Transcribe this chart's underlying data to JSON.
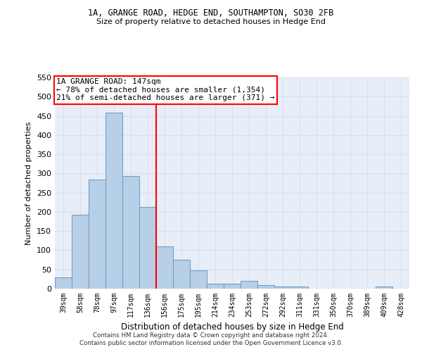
{
  "title_line1": "1A, GRANGE ROAD, HEDGE END, SOUTHAMPTON, SO30 2FB",
  "title_line2": "Size of property relative to detached houses in Hedge End",
  "xlabel": "Distribution of detached houses by size in Hedge End",
  "ylabel": "Number of detached properties",
  "categories": [
    "39sqm",
    "58sqm",
    "78sqm",
    "97sqm",
    "117sqm",
    "136sqm",
    "156sqm",
    "175sqm",
    "195sqm",
    "214sqm",
    "234sqm",
    "253sqm",
    "272sqm",
    "292sqm",
    "311sqm",
    "331sqm",
    "350sqm",
    "370sqm",
    "389sqm",
    "409sqm",
    "428sqm"
  ],
  "values": [
    30,
    192,
    285,
    458,
    293,
    213,
    110,
    75,
    47,
    13,
    12,
    21,
    10,
    6,
    6,
    0,
    0,
    0,
    0,
    5,
    0
  ],
  "bar_color": "#b8cfe8",
  "bar_edge_color": "#6fa0c8",
  "vline_index": 6,
  "vline_color": "red",
  "annotation_text": "1A GRANGE ROAD: 147sqm\n← 78% of detached houses are smaller (1,354)\n21% of semi-detached houses are larger (371) →",
  "annotation_box_color": "white",
  "annotation_box_edge_color": "red",
  "ylim": [
    0,
    550
  ],
  "yticks": [
    0,
    50,
    100,
    150,
    200,
    250,
    300,
    350,
    400,
    450,
    500,
    550
  ],
  "grid_color": "#d8dff0",
  "background_color": "#e8eef8",
  "footer_line1": "Contains HM Land Registry data © Crown copyright and database right 2024.",
  "footer_line2": "Contains public sector information licensed under the Open Government Licence v3.0."
}
